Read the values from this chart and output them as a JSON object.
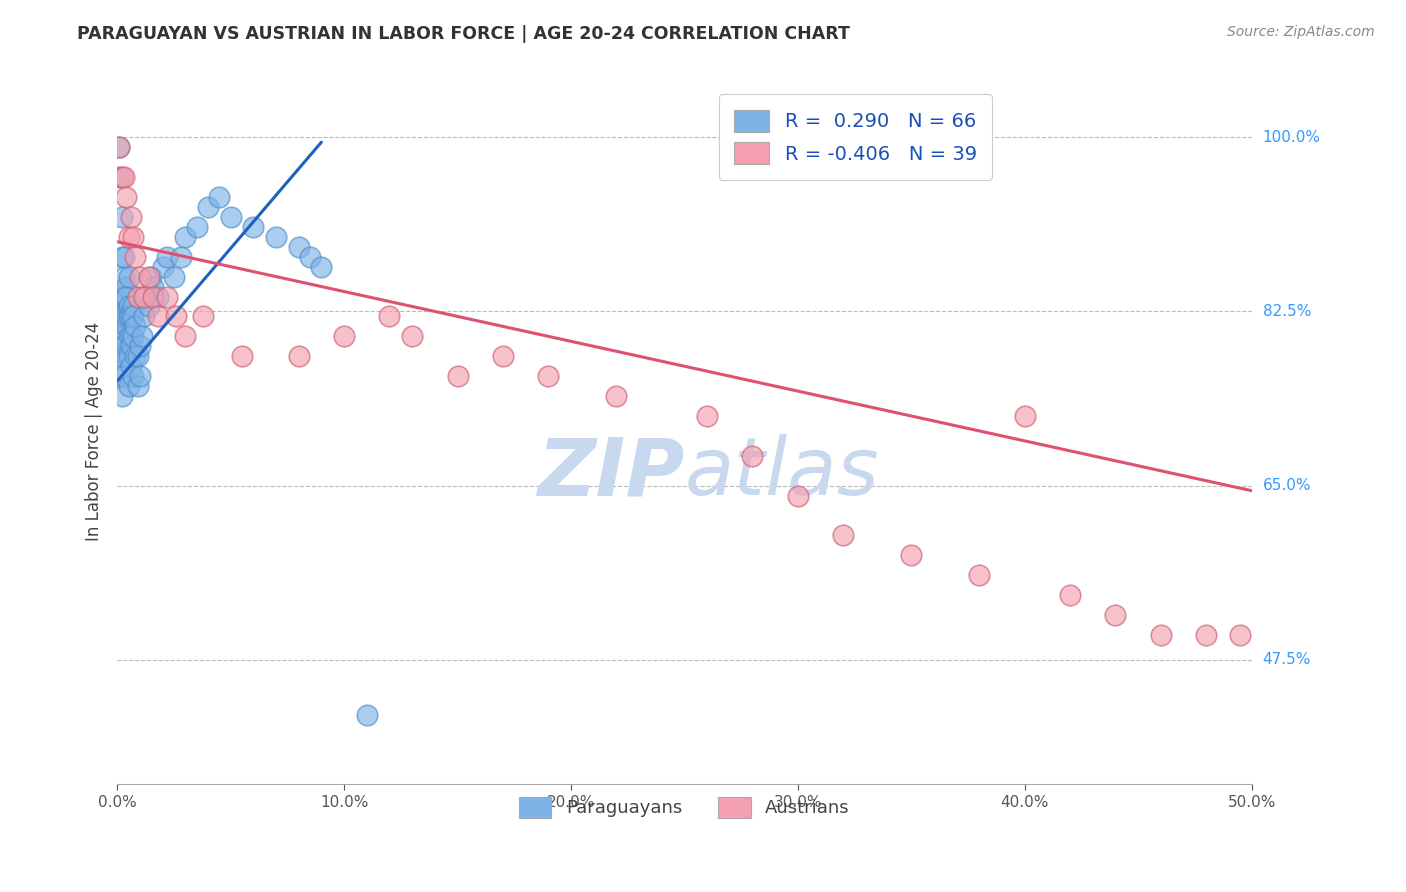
{
  "title": "PARAGUAYAN VS AUSTRIAN IN LABOR FORCE | AGE 20-24 CORRELATION CHART",
  "source": "Source: ZipAtlas.com",
  "ylabel": "In Labor Force | Age 20-24",
  "ytick_labels": [
    "47.5%",
    "65.0%",
    "82.5%",
    "100.0%"
  ],
  "ytick_values": [
    0.475,
    0.65,
    0.825,
    1.0
  ],
  "xlim": [
    0.0,
    0.5
  ],
  "ylim": [
    0.35,
    1.06
  ],
  "legend_line1": "R =  0.290   N = 66",
  "legend_line2": "R = -0.406   N = 39",
  "paraguayan_color": "#7EB3E8",
  "austrian_color": "#F4A0B0",
  "trend_paraguayan_color": "#2060C0",
  "trend_austrian_color": "#E05070",
  "legend_text_color": "#1a4fba",
  "title_color": "#333333",
  "watermark_color": "#c8d8ee",
  "par_trend_x0": 0.0,
  "par_trend_x1": 0.09,
  "par_trend_y0": 0.755,
  "par_trend_y1": 0.995,
  "aus_trend_x0": 0.0,
  "aus_trend_x1": 0.5,
  "aus_trend_y0": 0.895,
  "aus_trend_y1": 0.645,
  "par_points_x": [
    0.001,
    0.001,
    0.001,
    0.001,
    0.001,
    0.002,
    0.002,
    0.002,
    0.002,
    0.002,
    0.002,
    0.002,
    0.003,
    0.003,
    0.003,
    0.003,
    0.003,
    0.003,
    0.003,
    0.004,
    0.004,
    0.004,
    0.004,
    0.004,
    0.005,
    0.005,
    0.005,
    0.005,
    0.005,
    0.005,
    0.006,
    0.006,
    0.006,
    0.006,
    0.007,
    0.007,
    0.007,
    0.007,
    0.008,
    0.008,
    0.009,
    0.009,
    0.01,
    0.01,
    0.011,
    0.012,
    0.013,
    0.014,
    0.015,
    0.016,
    0.018,
    0.02,
    0.022,
    0.025,
    0.028,
    0.03,
    0.035,
    0.04,
    0.045,
    0.05,
    0.06,
    0.07,
    0.08,
    0.085,
    0.09,
    0.11
  ],
  "par_points_y": [
    0.82,
    0.79,
    0.76,
    0.99,
    0.96,
    0.84,
    0.88,
    0.92,
    0.8,
    0.82,
    0.78,
    0.74,
    0.86,
    0.83,
    0.8,
    0.84,
    0.79,
    0.76,
    0.88,
    0.85,
    0.81,
    0.82,
    0.78,
    0.84,
    0.86,
    0.83,
    0.8,
    0.82,
    0.78,
    0.75,
    0.8,
    0.77,
    0.82,
    0.79,
    0.83,
    0.8,
    0.76,
    0.82,
    0.78,
    0.81,
    0.75,
    0.78,
    0.79,
    0.76,
    0.8,
    0.82,
    0.84,
    0.83,
    0.86,
    0.85,
    0.84,
    0.87,
    0.88,
    0.86,
    0.88,
    0.9,
    0.91,
    0.93,
    0.94,
    0.92,
    0.91,
    0.9,
    0.89,
    0.88,
    0.87,
    0.42
  ],
  "aus_points_x": [
    0.001,
    0.002,
    0.003,
    0.004,
    0.005,
    0.006,
    0.007,
    0.008,
    0.009,
    0.01,
    0.012,
    0.014,
    0.016,
    0.018,
    0.022,
    0.026,
    0.03,
    0.038,
    0.055,
    0.08,
    0.1,
    0.12,
    0.13,
    0.15,
    0.17,
    0.19,
    0.22,
    0.26,
    0.28,
    0.3,
    0.32,
    0.35,
    0.38,
    0.4,
    0.42,
    0.44,
    0.46,
    0.48,
    0.495
  ],
  "aus_points_y": [
    0.99,
    0.96,
    0.96,
    0.94,
    0.9,
    0.92,
    0.9,
    0.88,
    0.84,
    0.86,
    0.84,
    0.86,
    0.84,
    0.82,
    0.84,
    0.82,
    0.8,
    0.82,
    0.78,
    0.78,
    0.8,
    0.82,
    0.8,
    0.76,
    0.78,
    0.76,
    0.74,
    0.72,
    0.68,
    0.64,
    0.6,
    0.58,
    0.56,
    0.72,
    0.54,
    0.52,
    0.5,
    0.5,
    0.5
  ]
}
